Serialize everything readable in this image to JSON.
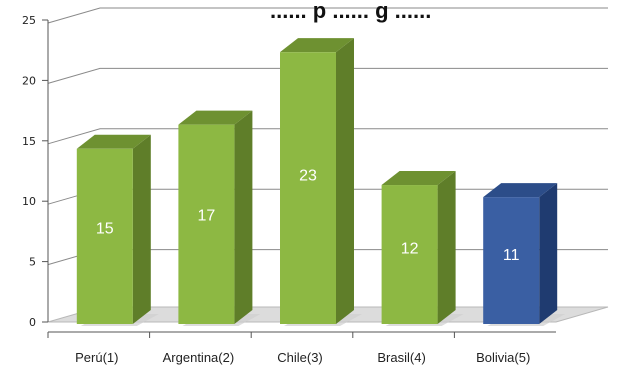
{
  "chart_data": {
    "type": "bar",
    "title": "...... p ...... g ......",
    "categories": [
      "Perú(1)",
      "Argentina(2)",
      "Chile(3)",
      "Brasil(4)",
      "Bolivia(5)"
    ],
    "values": [
      15,
      17,
      23,
      12,
      11
    ],
    "data_labels": [
      "15",
      "17",
      "23",
      "12",
      "11"
    ],
    "yticks": [
      "0",
      "5",
      "10",
      "15",
      "20",
      "25"
    ],
    "ylim": [
      0,
      25
    ],
    "xlabel": "",
    "ylabel": "",
    "grid": true,
    "legend": "none",
    "colors": {
      "bar_front": [
        "#8db843",
        "#8db843",
        "#8db843",
        "#8db843",
        "#3a5fa3"
      ],
      "bar_side": [
        "#5f7e29",
        "#5f7e29",
        "#5f7e29",
        "#5f7e29",
        "#1f3b70"
      ],
      "bar_top": [
        "#6e9131",
        "#6e9131",
        "#6e9131",
        "#6e9131",
        "#2c4d89"
      ],
      "gridline": "#8a8a8a",
      "floor": "#dcdcdc"
    }
  }
}
